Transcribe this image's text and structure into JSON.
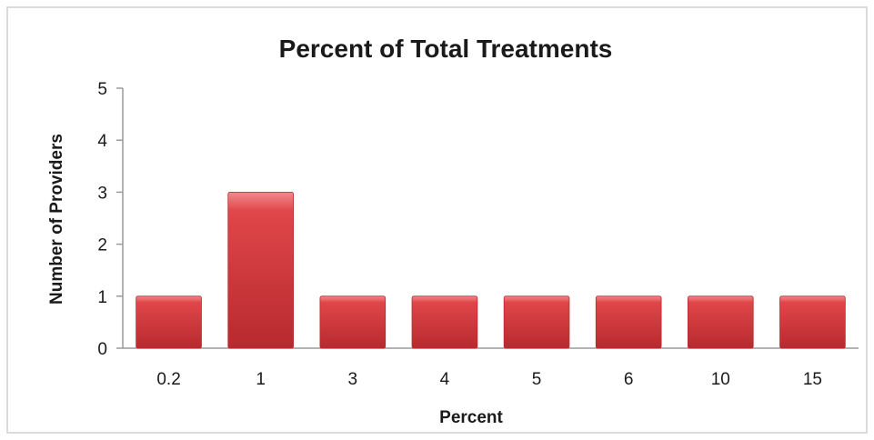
{
  "chart_data": {
    "type": "bar",
    "title": "Percent of Total Treatments",
    "xlabel": "Percent",
    "ylabel": "Number of Providers",
    "categories": [
      "0.2",
      "1",
      "3",
      "4",
      "5",
      "6",
      "10",
      "15"
    ],
    "values": [
      1,
      3,
      1,
      1,
      1,
      1,
      1,
      1
    ],
    "ylim": [
      0,
      5
    ],
    "yticks": [
      "0",
      "1",
      "2",
      "3",
      "4",
      "5"
    ],
    "grid": false,
    "legend": "none",
    "bar_color": "#e0464a",
    "bar_color_light": "#f28a8c",
    "bar_color_dark": "#b72a2e"
  }
}
